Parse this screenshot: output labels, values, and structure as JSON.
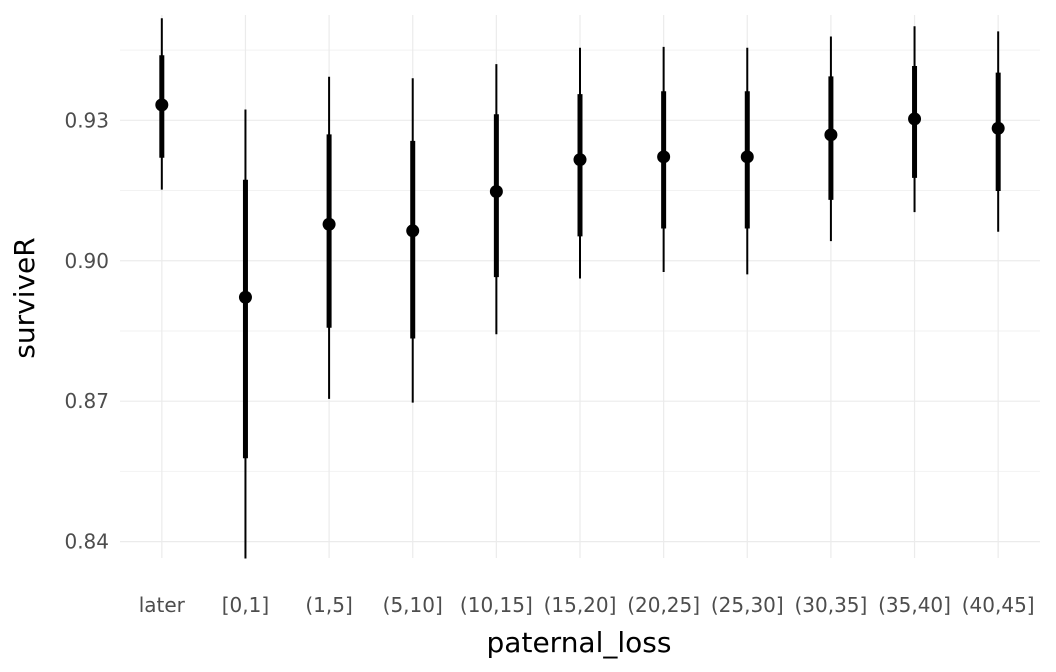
{
  "chart_data": {
    "type": "pointrange",
    "xlabel": "paternal_loss",
    "ylabel": "surviveR",
    "ylim": [
      0.8365,
      0.9525
    ],
    "yticks": [
      0.84,
      0.87,
      0.9,
      0.93
    ],
    "ytick_labels": [
      "0.84",
      "0.87",
      "0.90",
      "0.93"
    ],
    "grid": true,
    "categories": [
      "later",
      "[0,1]",
      "(1,5]",
      "(5,10]",
      "(10,15]",
      "(15,20]",
      "(20,25]",
      "(25,30]",
      "(30,35]",
      "(35,40]",
      "(40,45]"
    ],
    "estimate": [
      0.9333,
      0.8922,
      0.9078,
      0.9064,
      0.9148,
      0.9216,
      0.9222,
      0.9222,
      0.9269,
      0.9303,
      0.9283
    ],
    "inner_low": [
      0.922,
      0.8578,
      0.8857,
      0.8834,
      0.8965,
      0.9052,
      0.9069,
      0.9069,
      0.913,
      0.9177,
      0.9149
    ],
    "inner_high": [
      0.9439,
      0.9173,
      0.927,
      0.9256,
      0.9313,
      0.9356,
      0.9362,
      0.9362,
      0.9394,
      0.9416,
      0.9402
    ],
    "outer_low": [
      0.9152,
      0.8364,
      0.8705,
      0.8697,
      0.8843,
      0.8962,
      0.8976,
      0.8971,
      0.9042,
      0.9104,
      0.9062
    ],
    "outer_high": [
      0.9518,
      0.9323,
      0.9393,
      0.939,
      0.942,
      0.9455,
      0.9457,
      0.9455,
      0.9479,
      0.9501,
      0.949
    ],
    "colors": {
      "mark": "#000000",
      "grid_major": "#ebebeb",
      "grid_minor": "#f2f2f2",
      "tick_text": "#4d4d4d"
    }
  }
}
